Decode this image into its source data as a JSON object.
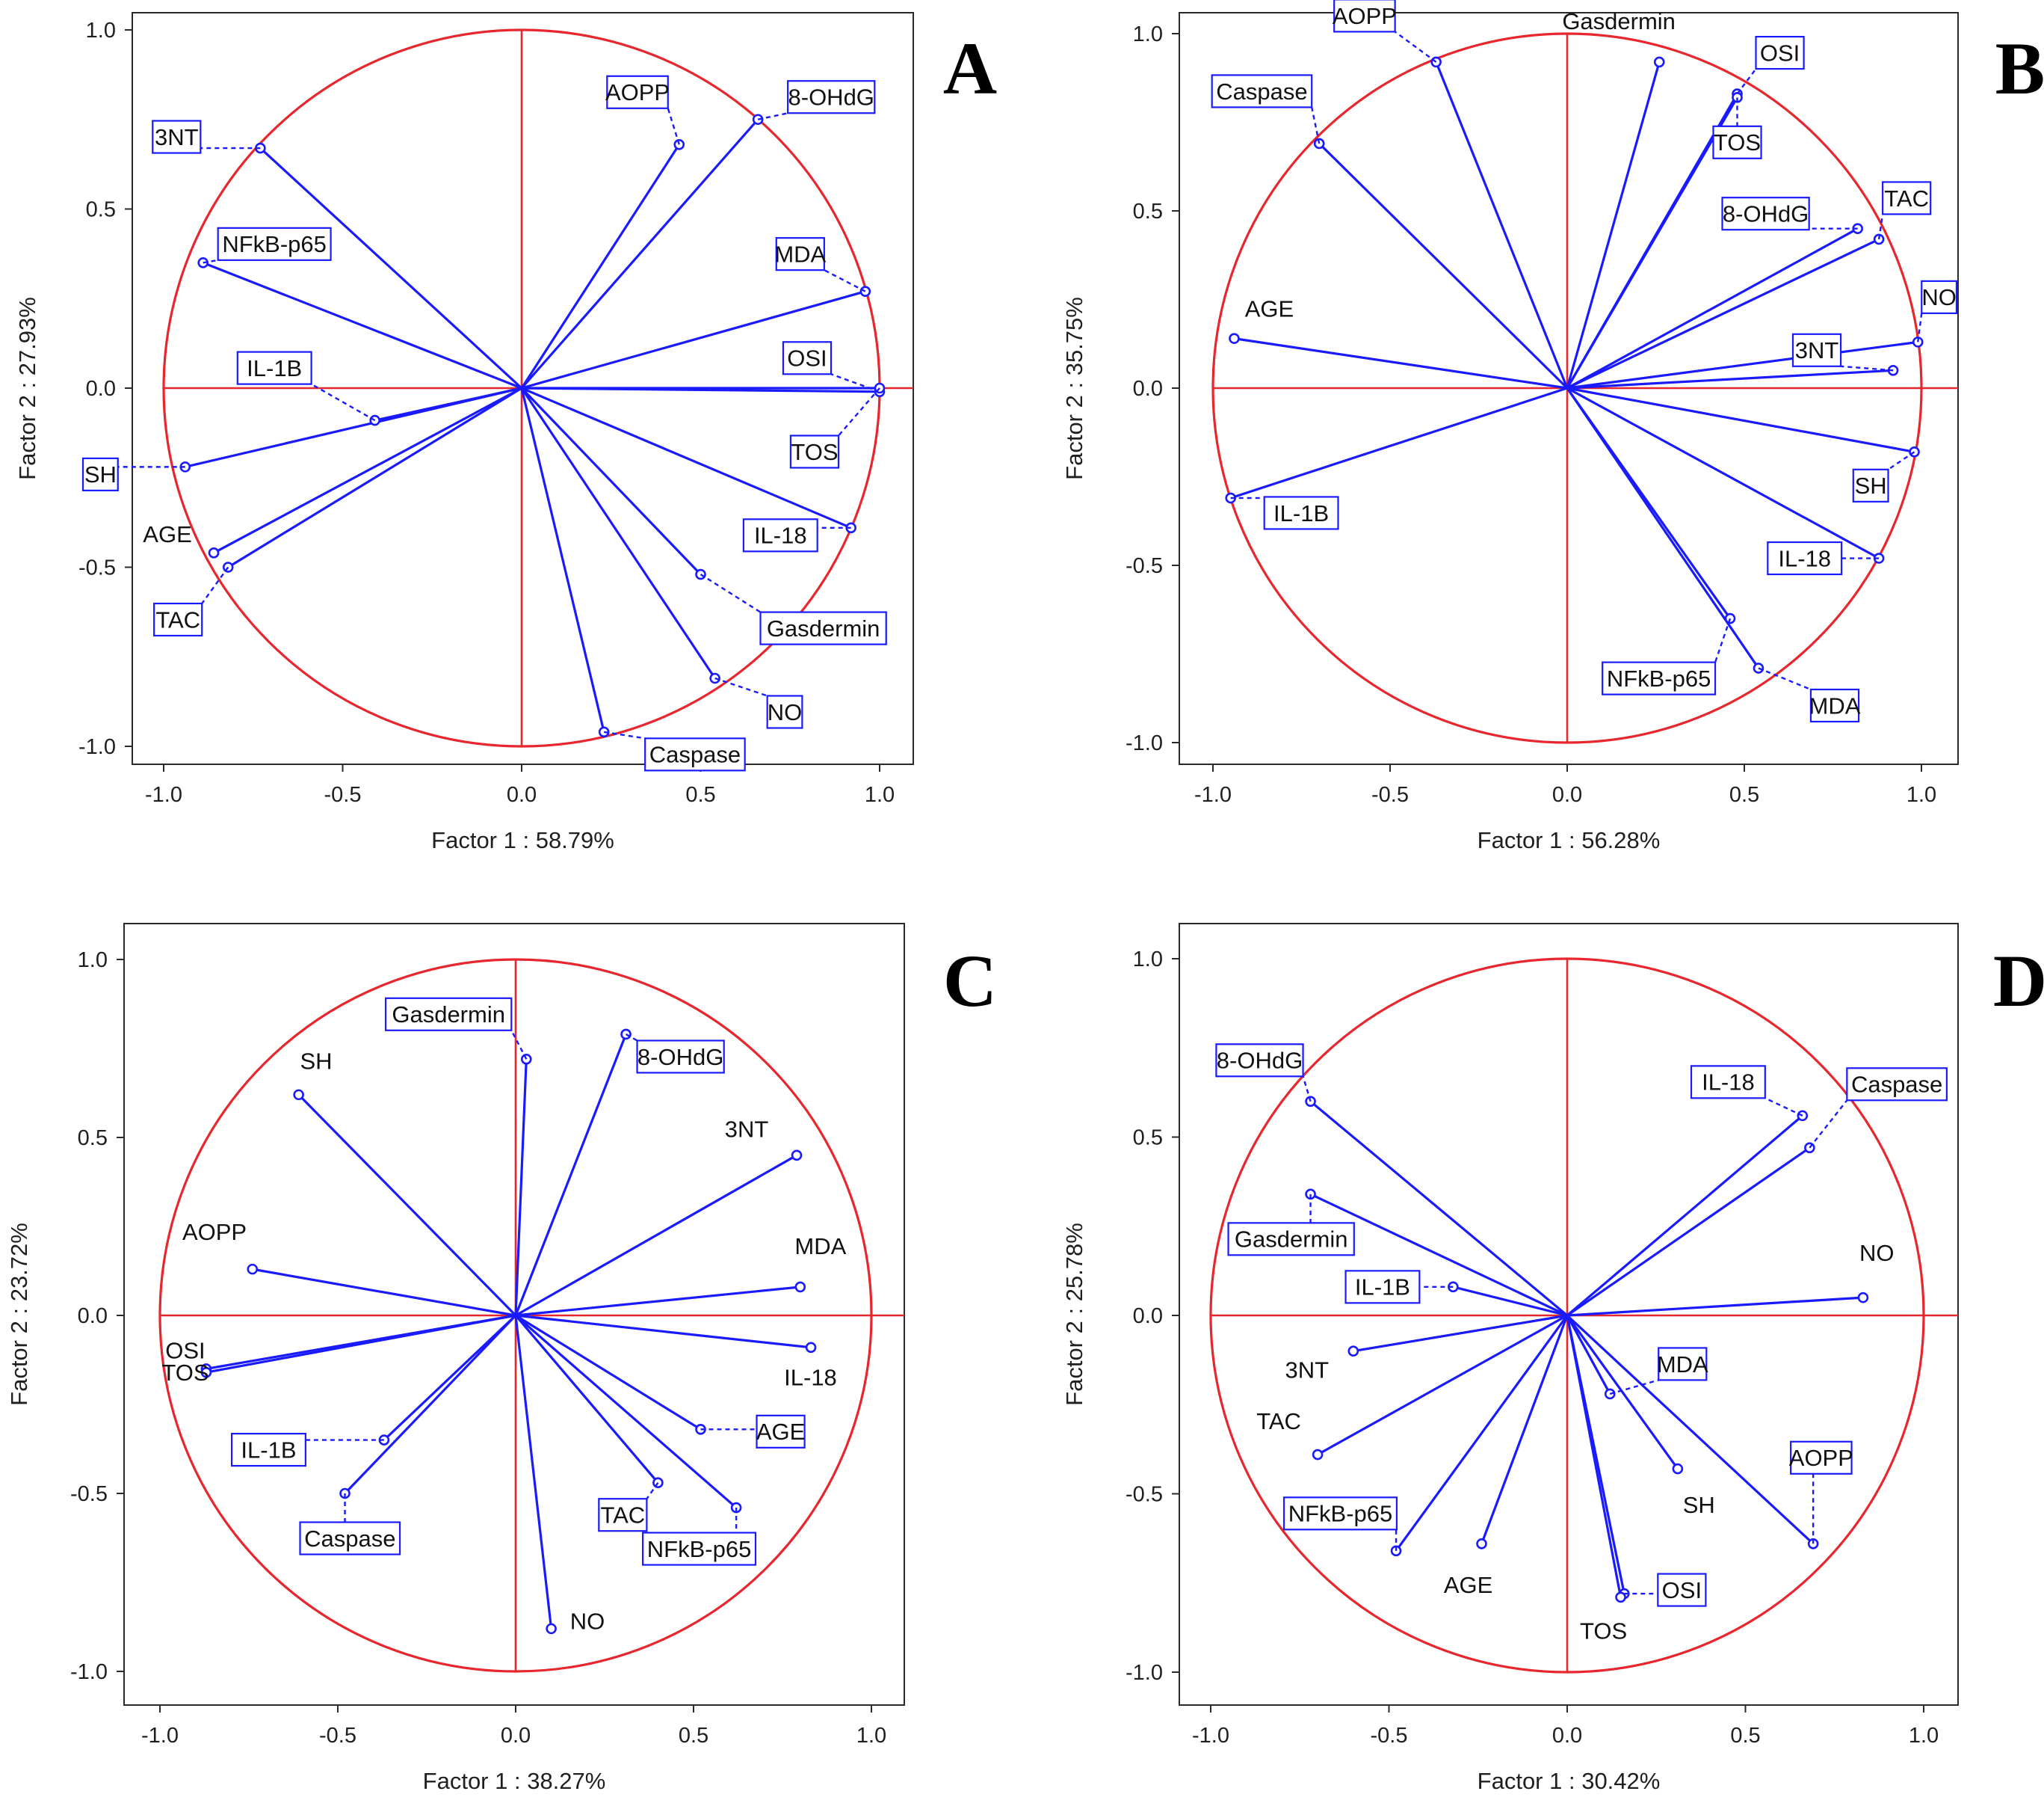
{
  "chart_data": [
    {
      "panel": "A",
      "type": "scatter",
      "xlabel": "Factor 1 : 58.79%",
      "ylabel": "Factor 2 : 27.93%",
      "xlim": [
        -1.1,
        1.1
      ],
      "ylim": [
        -1.1,
        1.1
      ],
      "ticks": [
        "-1.0",
        "-0.5",
        "0.0",
        "0.5",
        "1.0"
      ],
      "points": [
        {
          "label": "3NT",
          "x": -0.73,
          "y": 0.67,
          "boxed": true
        },
        {
          "label": "AOPP",
          "x": 0.44,
          "y": 0.68,
          "boxed": true
        },
        {
          "label": "8-OHdG",
          "x": 0.66,
          "y": 0.75,
          "boxed": true
        },
        {
          "label": "NFkB-p65",
          "x": -0.89,
          "y": 0.35,
          "boxed": true
        },
        {
          "label": "MDA",
          "x": 0.96,
          "y": 0.27,
          "boxed": true
        },
        {
          "label": "OSI",
          "x": 1.0,
          "y": -0.01,
          "boxed": true
        },
        {
          "label": "TOS",
          "x": 1.0,
          "y": 0.0,
          "boxed": true
        },
        {
          "label": "IL-1B",
          "x": -0.41,
          "y": -0.09,
          "boxed": true
        },
        {
          "label": "SH",
          "x": -0.94,
          "y": -0.22,
          "boxed": true
        },
        {
          "label": "AGE",
          "x": -0.86,
          "y": -0.46,
          "boxed": false
        },
        {
          "label": "TAC",
          "x": -0.82,
          "y": -0.5,
          "boxed": true
        },
        {
          "label": "IL-18",
          "x": 0.92,
          "y": -0.39,
          "boxed": true
        },
        {
          "label": "Gasdermin",
          "x": 0.5,
          "y": -0.52,
          "boxed": true
        },
        {
          "label": "NO",
          "x": 0.54,
          "y": -0.81,
          "boxed": true
        },
        {
          "label": "Caspase",
          "x": 0.23,
          "y": -0.96,
          "boxed": true
        }
      ]
    },
    {
      "panel": "B",
      "type": "scatter",
      "xlabel": "Factor 1 : 56.28%",
      "ylabel": "Factor 2 : 35.75%",
      "xlim": [
        -1.1,
        1.1
      ],
      "ylim": [
        -1.1,
        1.1
      ],
      "ticks": [
        "-1.0",
        "-0.5",
        "0.0",
        "0.5",
        "1.0"
      ],
      "points": [
        {
          "label": "AOPP",
          "x": -0.37,
          "y": 0.92,
          "boxed": true
        },
        {
          "label": "Gasdermin",
          "x": 0.26,
          "y": 0.92,
          "boxed": false
        },
        {
          "label": "OSI",
          "x": 0.48,
          "y": 0.83,
          "boxed": true
        },
        {
          "label": "TOS",
          "x": 0.48,
          "y": 0.82,
          "boxed": true
        },
        {
          "label": "Caspase",
          "x": -0.7,
          "y": 0.69,
          "boxed": true
        },
        {
          "label": "TAC",
          "x": 0.88,
          "y": 0.42,
          "boxed": true
        },
        {
          "label": "8-OHdG",
          "x": 0.82,
          "y": 0.45,
          "boxed": true
        },
        {
          "label": "NO",
          "x": 0.99,
          "y": 0.13,
          "boxed": true
        },
        {
          "label": "3NT",
          "x": 0.92,
          "y": 0.05,
          "boxed": true
        },
        {
          "label": "AGE",
          "x": -0.94,
          "y": 0.14,
          "boxed": false
        },
        {
          "label": "SH",
          "x": 0.98,
          "y": -0.18,
          "boxed": true
        },
        {
          "label": "IL-1B",
          "x": -0.95,
          "y": -0.31,
          "boxed": true
        },
        {
          "label": "IL-18",
          "x": 0.88,
          "y": -0.48,
          "boxed": true
        },
        {
          "label": "NFkB-p65",
          "x": 0.46,
          "y": -0.65,
          "boxed": true
        },
        {
          "label": "MDA",
          "x": 0.54,
          "y": -0.79,
          "boxed": true
        }
      ]
    },
    {
      "panel": "C",
      "type": "scatter",
      "xlabel": "Factor 1 : 38.27%",
      "ylabel": "Factor 2 : 23.72%",
      "xlim": [
        -1.1,
        1.1
      ],
      "ylim": [
        -1.1,
        1.1
      ],
      "ticks": [
        "-1.0",
        "-0.5",
        "0.0",
        "0.5",
        "1.0"
      ],
      "points": [
        {
          "label": "Gasdermin",
          "x": 0.03,
          "y": 0.72,
          "boxed": true
        },
        {
          "label": "8-OHdG",
          "x": 0.31,
          "y": 0.79,
          "boxed": true
        },
        {
          "label": "SH",
          "x": -0.61,
          "y": 0.62,
          "boxed": false
        },
        {
          "label": "3NT",
          "x": 0.79,
          "y": 0.45,
          "boxed": false
        },
        {
          "label": "AOPP",
          "x": -0.74,
          "y": 0.13,
          "boxed": false
        },
        {
          "label": "MDA",
          "x": 0.8,
          "y": 0.08,
          "boxed": false
        },
        {
          "label": "OSI",
          "x": -0.87,
          "y": -0.15,
          "boxed": false
        },
        {
          "label": "TOS",
          "x": -0.87,
          "y": -0.16,
          "boxed": false
        },
        {
          "label": "IL-18",
          "x": 0.83,
          "y": -0.09,
          "boxed": false
        },
        {
          "label": "IL-1B",
          "x": -0.37,
          "y": -0.35,
          "boxed": true
        },
        {
          "label": "AGE",
          "x": 0.52,
          "y": -0.32,
          "boxed": true
        },
        {
          "label": "Caspase",
          "x": -0.48,
          "y": -0.5,
          "boxed": true
        },
        {
          "label": "TAC",
          "x": 0.4,
          "y": -0.47,
          "boxed": true
        },
        {
          "label": "NFkB-p65",
          "x": 0.62,
          "y": -0.54,
          "boxed": true
        },
        {
          "label": "NO",
          "x": 0.1,
          "y": -0.88,
          "boxed": false
        }
      ]
    },
    {
      "panel": "D",
      "type": "scatter",
      "xlabel": "Factor 1 : 30.42%",
      "ylabel": "Factor 2 : 25.78%",
      "xlim": [
        -1.1,
        1.1
      ],
      "ylim": [
        -1.1,
        1.1
      ],
      "ticks": [
        "-1.0",
        "-0.5",
        "0.0",
        "0.5",
        "1.0"
      ],
      "points": [
        {
          "label": "8-OHdG",
          "x": -0.72,
          "y": 0.6,
          "boxed": true
        },
        {
          "label": "IL-18",
          "x": 0.66,
          "y": 0.56,
          "boxed": true
        },
        {
          "label": "Caspase",
          "x": 0.68,
          "y": 0.47,
          "boxed": true
        },
        {
          "label": "Gasdermin",
          "x": -0.72,
          "y": 0.34,
          "boxed": true
        },
        {
          "label": "NO",
          "x": 0.83,
          "y": 0.05,
          "boxed": false
        },
        {
          "label": "IL-1B",
          "x": -0.32,
          "y": 0.08,
          "boxed": true
        },
        {
          "label": "3NT",
          "x": -0.6,
          "y": -0.1,
          "boxed": false
        },
        {
          "label": "MDA",
          "x": 0.12,
          "y": -0.22,
          "boxed": true
        },
        {
          "label": "TAC",
          "x": -0.7,
          "y": -0.39,
          "boxed": false
        },
        {
          "label": "SH",
          "x": 0.31,
          "y": -0.43,
          "boxed": false
        },
        {
          "label": "AOPP",
          "x": 0.69,
          "y": -0.64,
          "boxed": true
        },
        {
          "label": "AGE",
          "x": -0.24,
          "y": -0.64,
          "boxed": false
        },
        {
          "label": "NFkB-p65",
          "x": -0.48,
          "y": -0.66,
          "boxed": true
        },
        {
          "label": "OSI",
          "x": 0.16,
          "y": -0.78,
          "boxed": true
        },
        {
          "label": "TOS",
          "x": 0.15,
          "y": -0.79,
          "boxed": false
        }
      ]
    }
  ]
}
